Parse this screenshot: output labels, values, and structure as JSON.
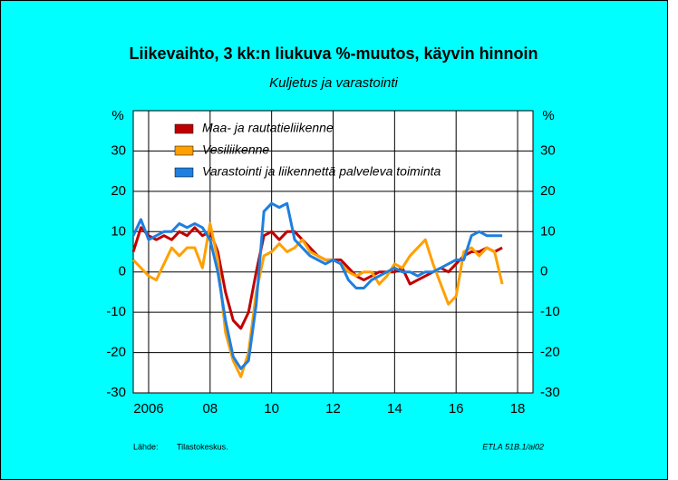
{
  "chart_data": {
    "type": "line",
    "title": "Liikevaihto, 3 kk:n liukuva %-muutos, käyvin hinnoin",
    "subtitle": "Kuljetus ja varastointi",
    "y_label": "%",
    "source_label": "Lähde:",
    "source": "Tilastokeskus.",
    "credit": "ETLA 51B.1/ai02",
    "x": [
      2005.5,
      2005.75,
      2006,
      2006.25,
      2006.5,
      2006.75,
      2007,
      2007.25,
      2007.5,
      2007.75,
      2008,
      2008.25,
      2008.5,
      2008.75,
      2009,
      2009.25,
      2009.5,
      2009.75,
      2010,
      2010.25,
      2010.5,
      2010.75,
      2011,
      2011.25,
      2011.5,
      2011.75,
      2012,
      2012.25,
      2012.5,
      2012.75,
      2013,
      2013.25,
      2013.5,
      2013.75,
      2014,
      2014.25,
      2014.5,
      2014.75,
      2015,
      2015.25,
      2015.5,
      2015.75,
      2016,
      2016.25,
      2016.5,
      2016.75,
      2017,
      2017.25,
      2017.5
    ],
    "series": [
      {
        "name": "Maa- ja rautatieliikenne",
        "color": "#c00000",
        "values": [
          5,
          11,
          9,
          8,
          9,
          8,
          10,
          9,
          11,
          9,
          10,
          5,
          -5,
          -12,
          -14,
          -10,
          0,
          9,
          10,
          8,
          10,
          10,
          8,
          6,
          4,
          3,
          3,
          3,
          1,
          -1,
          -2,
          -1,
          0,
          0,
          0,
          1,
          -3,
          -2,
          -1,
          0,
          1,
          0,
          2,
          4,
          5,
          5,
          6,
          5,
          6
        ]
      },
      {
        "name": "Vesiliikenne",
        "color": "#ffa000",
        "values": [
          3,
          1,
          -1,
          -2,
          2,
          6,
          4,
          6,
          6,
          1,
          12,
          3,
          -15,
          -22,
          -26,
          -20,
          -5,
          4,
          5,
          7,
          5,
          6,
          8,
          5,
          4,
          3,
          3,
          2,
          0,
          -1,
          0,
          0,
          -3,
          -1,
          2,
          1,
          4,
          6,
          8,
          2,
          -3,
          -8,
          -6,
          5,
          6,
          4,
          6,
          5,
          -3
        ]
      },
      {
        "name": "Varastointi ja liikennettä palveleva toiminta",
        "color": "#1e7fe0",
        "values": [
          9,
          13,
          8,
          9,
          10,
          10,
          12,
          11,
          12,
          11,
          8,
          0,
          -12,
          -21,
          -24,
          -22,
          -8,
          15,
          17,
          16,
          17,
          8,
          6,
          4,
          3,
          2,
          3,
          2,
          -2,
          -4,
          -4,
          -2,
          -1,
          0,
          1,
          0,
          0,
          -1,
          0,
          0,
          1,
          2,
          3,
          3,
          9,
          10,
          9,
          9,
          9
        ]
      }
    ],
    "xlim": [
      2005.5,
      2018.5
    ],
    "xticks": [
      {
        "value": 2006,
        "label": "2006"
      },
      {
        "value": 2008,
        "label": "08"
      },
      {
        "value": 2010,
        "label": "10"
      },
      {
        "value": 2012,
        "label": "12"
      },
      {
        "value": 2014,
        "label": "14"
      },
      {
        "value": 2016,
        "label": "16"
      },
      {
        "value": 2018,
        "label": "18"
      }
    ],
    "ylim": [
      -30,
      40
    ],
    "yticks": [
      -30,
      -20,
      -10,
      0,
      10,
      20,
      30
    ],
    "grid": true,
    "legend": "upper-left"
  }
}
